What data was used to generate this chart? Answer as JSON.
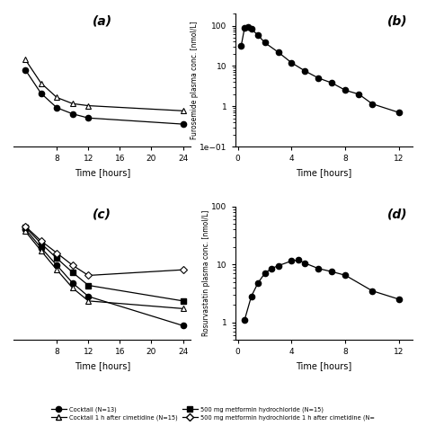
{
  "panel_a": {
    "label": "(a)",
    "series1_x": [
      4,
      6,
      8,
      10,
      12,
      24
    ],
    "series1_y": [
      1.05,
      0.82,
      0.68,
      0.62,
      0.58,
      0.52
    ],
    "series2_x": [
      4,
      6,
      8,
      10,
      12,
      24
    ],
    "series2_y": [
      1.15,
      0.92,
      0.78,
      0.72,
      0.7,
      0.65
    ],
    "xlabel": "Time [hours]",
    "ylabel": "",
    "xticks": [
      8,
      12,
      16,
      20,
      24
    ],
    "xlim": [
      2.5,
      25
    ],
    "ylim": [
      0.3,
      1.6
    ],
    "ylim_log": false
  },
  "panel_b": {
    "label": "(b)",
    "series1_x": [
      0.25,
      0.5,
      0.75,
      1.0,
      1.5,
      2.0,
      3.0,
      4.0,
      5.0,
      6.0,
      7.0,
      8.0,
      9.0,
      10.0,
      12.0
    ],
    "series1_y": [
      32,
      88,
      95,
      82,
      58,
      38,
      22,
      12,
      7.5,
      5.0,
      3.8,
      2.5,
      2.0,
      1.15,
      0.7
    ],
    "xlabel": "Time [hours]",
    "ylabel": "Furosemide plasma conc. [nmol/L]",
    "xticks": [
      0,
      4,
      8,
      12
    ],
    "xlim": [
      -0.2,
      13
    ],
    "ylim": [
      0.1,
      200
    ],
    "ylim_log": true
  },
  "panel_c": {
    "label": "(c)",
    "series1_x": [
      4,
      6,
      8,
      10,
      12,
      24
    ],
    "series1_y": [
      110,
      48,
      22,
      10,
      5.5,
      1.5
    ],
    "series2_x": [
      4,
      6,
      8,
      10,
      12,
      24
    ],
    "series2_y": [
      120,
      58,
      30,
      16,
      9,
      4.5
    ],
    "series3_x": [
      4,
      6,
      8,
      10,
      12,
      24
    ],
    "series3_y": [
      100,
      42,
      18,
      8,
      4.5,
      3.2
    ],
    "series4_x": [
      4,
      6,
      8,
      10,
      12,
      24
    ],
    "series4_y": [
      125,
      65,
      38,
      22,
      14,
      18
    ],
    "xlabel": "Time [hours]",
    "ylabel": "",
    "xticks": [
      8,
      12,
      16,
      20,
      24
    ],
    "xlim": [
      2.5,
      25
    ],
    "ylim": [
      0.8,
      300
    ],
    "ylim_log": true
  },
  "panel_d": {
    "label": "(d)",
    "series1_x": [
      0.5,
      1.0,
      1.5,
      2.0,
      2.5,
      3.0,
      4.0,
      4.5,
      5.0,
      6.0,
      7.0,
      8.0,
      10.0,
      12.0
    ],
    "series1_y": [
      1.1,
      2.8,
      4.8,
      7.0,
      8.5,
      9.5,
      11.5,
      12.0,
      10.5,
      8.5,
      7.5,
      6.5,
      3.5,
      2.5
    ],
    "xlabel": "Time [hours]",
    "ylabel": "Rosurvastatin plasma conc. [nmol/L]",
    "xticks": [
      0,
      4,
      8,
      12
    ],
    "xlim": [
      -0.2,
      13
    ],
    "ylim": [
      0.5,
      100
    ],
    "ylim_log": true
  },
  "legend": {
    "cocktail_filled": "Cocktail (N=13)",
    "metformin_filled": "500 mg metformin hydrochloride (N=15)",
    "cocktail_open": "Cocktail 1 h after cimetidine (N=15)",
    "metformin_open": "500 mg metformin hydrochloride 1 h after cimetidine (N="
  }
}
